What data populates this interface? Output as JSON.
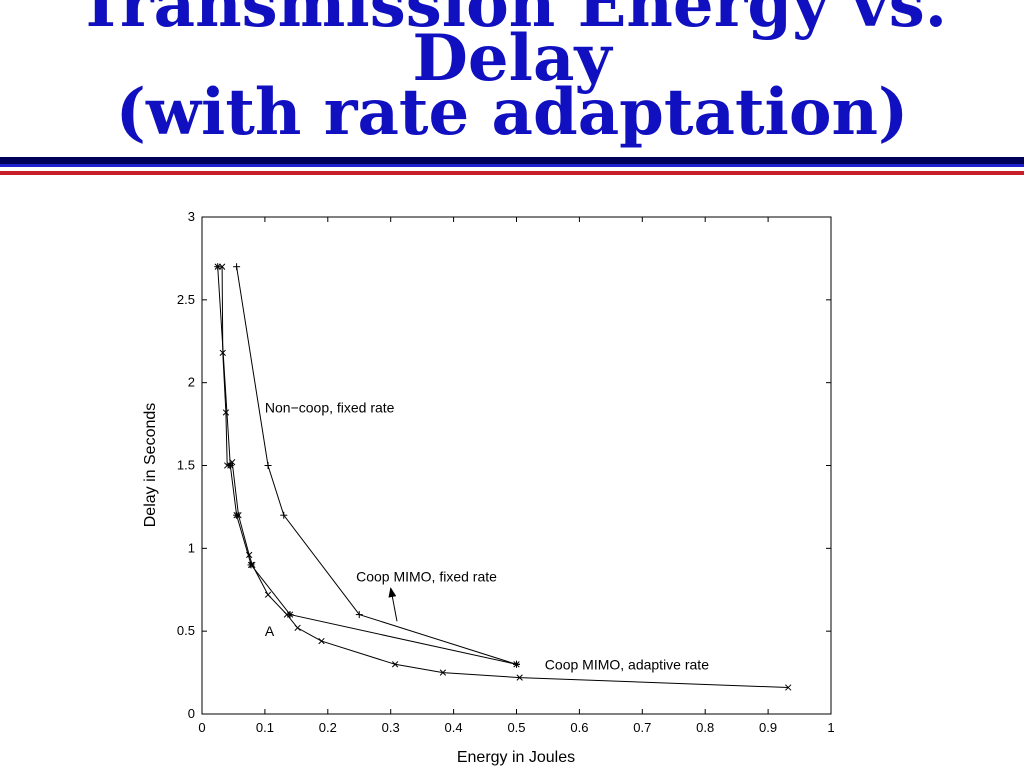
{
  "slide": {
    "title_lines": [
      "Transmission Energy vs.",
      "Delay",
      "(with rate adaptation)"
    ],
    "colors": {
      "title": "#1010c0",
      "rule_navy": "#00005a",
      "rule_blue": "#2020d0",
      "rule_red": "#c81e2a"
    }
  },
  "chart_data": {
    "type": "line",
    "xlabel": "Energy in Joules",
    "ylabel": "Delay in Seconds",
    "xlim": [
      0,
      1
    ],
    "ylim": [
      0,
      3
    ],
    "xticks": [
      0,
      0.1,
      0.2,
      0.3,
      0.4,
      0.5,
      0.6,
      0.7,
      0.8,
      0.9,
      1
    ],
    "yticks": [
      0,
      0.5,
      1,
      1.5,
      2,
      2.5,
      3
    ],
    "grid": false,
    "series": [
      {
        "name": "Non−coop, fixed rate",
        "marker": "+",
        "x": [
          0.055,
          0.105,
          0.13,
          0.25,
          0.5
        ],
        "y": [
          2.7,
          1.5,
          1.2,
          0.6,
          0.3
        ]
      },
      {
        "name": "Coop MIMO, fixed rate",
        "marker": "*",
        "x": [
          0.025,
          0.045,
          0.055,
          0.078,
          0.14,
          0.5
        ],
        "y": [
          2.7,
          1.5,
          1.2,
          0.9,
          0.6,
          0.3
        ]
      },
      {
        "name": "Coop MIMO, adaptive rate",
        "marker": "x",
        "x": [
          0.032,
          0.033,
          0.038,
          0.04,
          0.048,
          0.058,
          0.075,
          0.08,
          0.105,
          0.135,
          0.152,
          0.19,
          0.307,
          0.383,
          0.505,
          0.932
        ],
        "y": [
          2.7,
          2.18,
          1.82,
          1.5,
          1.52,
          1.2,
          0.96,
          0.9,
          0.72,
          0.6,
          0.52,
          0.44,
          0.3,
          0.25,
          0.22,
          0.16
        ]
      }
    ],
    "annotations": [
      {
        "text": "Non−coop, fixed rate",
        "x": 0.1,
        "y": 1.82
      },
      {
        "text": "Coop MIMO, fixed rate",
        "x": 0.245,
        "y": 0.8,
        "arrow_from": [
          0.31,
          0.56
        ],
        "arrow_to": [
          0.3,
          0.76
        ]
      },
      {
        "text": "Coop MIMO, adaptive rate",
        "x": 0.545,
        "y": 0.27
      },
      {
        "text": "A",
        "x": 0.1,
        "y": 0.47
      }
    ]
  }
}
